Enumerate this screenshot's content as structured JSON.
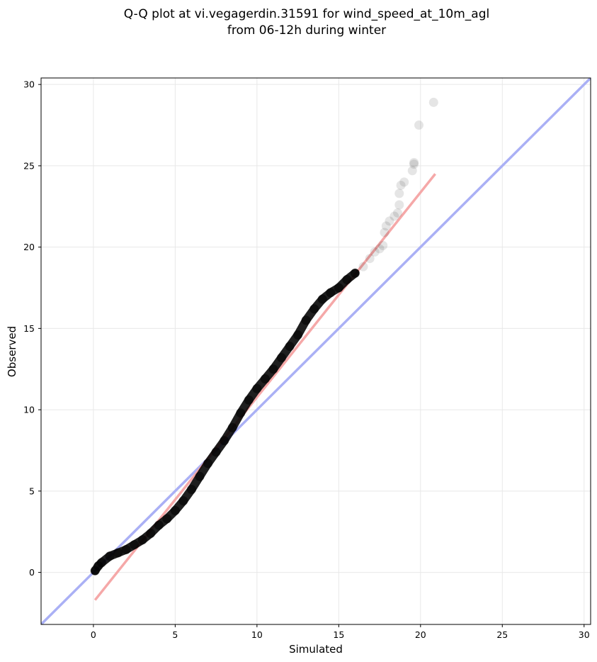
{
  "chart_data": {
    "type": "scatter",
    "title_line1": "Q-Q plot at vi.vegagerdin.31591 for wind_speed_at_10m_agl",
    "title_line2": "from 06-12h during winter",
    "xlabel": "Simulated",
    "ylabel": "Observed",
    "xlim": [
      -3.2,
      30.4
    ],
    "ylim": [
      -3.2,
      30.4
    ],
    "xticks": [
      0,
      5,
      10,
      15,
      20,
      25,
      30
    ],
    "yticks": [
      0,
      5,
      10,
      15,
      20,
      25,
      30
    ],
    "grid": true,
    "colors": {
      "identity_line": "#aab0f5",
      "fit_line": "#f5a8a8",
      "points": "#000000",
      "grid": "#e8e8e8"
    },
    "identity_line": {
      "x": [
        -3.2,
        30.4
      ],
      "y": [
        -3.2,
        30.4
      ]
    },
    "fit_line": {
      "x": [
        0.1,
        20.9
      ],
      "y": [
        -1.7,
        24.5
      ]
    },
    "quantile_curve": {
      "x": [
        0.1,
        0.3,
        0.5,
        1.0,
        1.5,
        2.0,
        2.5,
        3.0,
        3.5,
        4.0,
        4.5,
        5.0,
        5.5,
        6.0,
        6.5,
        7.0,
        7.5,
        8.0,
        8.5,
        9.0,
        9.5,
        10.0,
        10.5,
        11.0,
        11.5,
        12.0,
        12.5,
        13.0,
        13.5,
        14.0,
        14.5,
        15.0,
        15.5,
        16.0
      ],
      "y": [
        0.1,
        0.4,
        0.6,
        1.0,
        1.2,
        1.4,
        1.7,
        2.0,
        2.4,
        2.9,
        3.3,
        3.8,
        4.4,
        5.1,
        5.9,
        6.7,
        7.4,
        8.1,
        8.9,
        9.8,
        10.6,
        11.3,
        11.9,
        12.5,
        13.2,
        13.9,
        14.6,
        15.5,
        16.2,
        16.8,
        17.2,
        17.5,
        18.0,
        18.4
      ],
      "opacity": 0.55
    },
    "tail_points": {
      "x": [
        16.5,
        16.9,
        17.2,
        17.5,
        17.7,
        17.8,
        17.9,
        18.1,
        18.4,
        18.6,
        18.7,
        18.7,
        18.8,
        19.0,
        19.5,
        19.6,
        19.6,
        19.9,
        20.8
      ],
      "y": [
        18.8,
        19.3,
        19.7,
        19.9,
        20.1,
        20.9,
        21.3,
        21.6,
        21.9,
        22.1,
        22.6,
        23.3,
        23.8,
        24.0,
        24.7,
        25.1,
        25.2,
        27.5,
        28.9
      ],
      "opacity": 0.1
    }
  }
}
